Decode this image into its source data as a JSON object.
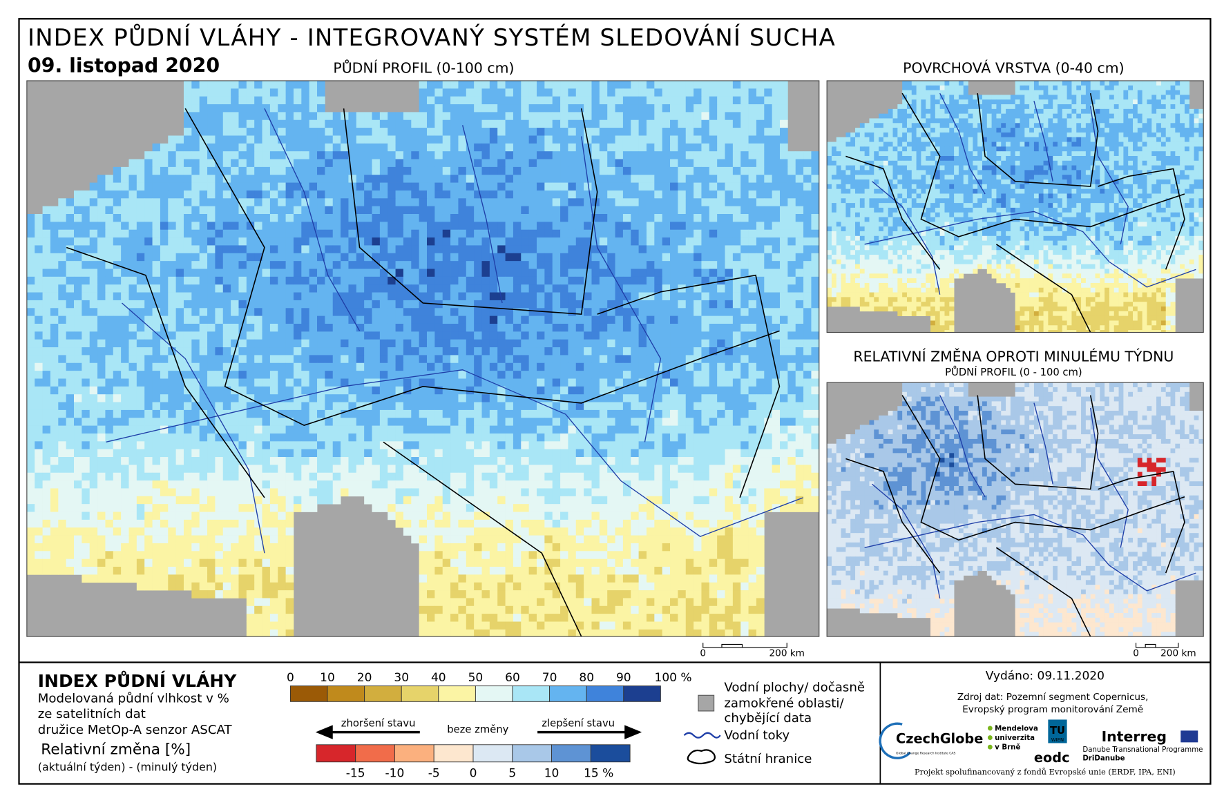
{
  "header": {
    "title": "INDEX PŮDNÍ VLÁHY - INTEGROVANÝ SYSTÉM SLEDOVÁNÍ SUCHA",
    "date": "09. listopad 2020"
  },
  "panels": {
    "main": "PŮDNÍ PROFIL (0-100 cm)",
    "surface": "POVRCHOVÁ VRSTVA (0-40 cm)",
    "change_title": "RELATIVNÍ ZMĚNA OPROTI MINULÉMU TÝDNU",
    "change_subtitle": "PŮDNÍ PROFIL (0 - 100 cm)"
  },
  "scale_bar": {
    "start": "0",
    "end": "200 km"
  },
  "legend": {
    "title": "INDEX PŮDNÍ VLÁHY",
    "lines": [
      "Modelovaná půdní vlhkost v %",
      "ze satelitních dat",
      "družice MetOp-A senzor ASCAT"
    ],
    "change_title": "Relativní změna [%]",
    "change_note": "(aktuální týden) - (minulý týden)",
    "moisture_ticks": [
      "0",
      "10",
      "20",
      "30",
      "40",
      "50",
      "60",
      "70",
      "80",
      "90",
      "100 %"
    ],
    "moisture_colors": [
      "#9b5a06",
      "#c08a1c",
      "#d2ae3e",
      "#e6d36a",
      "#fbf4a4",
      "#e4f7f4",
      "#a9e6f6",
      "#64b4f0",
      "#3f83db",
      "#1c3f90"
    ],
    "worse": "zhoršení stavu",
    "nochange": "beze změny",
    "better": "zlepšení stavu",
    "change_ticks": [
      "-15",
      "-10",
      "-5",
      "0",
      "5",
      "10",
      "15 %"
    ],
    "change_colors": [
      "#d7262b",
      "#f16c4a",
      "#fbb07e",
      "#fde7cf",
      "#dce8f3",
      "#a9c8e8",
      "#5e93d4",
      "#1b4d9c"
    ],
    "water": [
      "Vodní plochy/ dočasně",
      "zamokřené oblasti/",
      "chybějící data"
    ],
    "rivers": "Vodní toky",
    "borders": "Státní hranice"
  },
  "footer": {
    "issued": "Vydáno: 09.11.2020",
    "source": [
      "Zdroj dat: Pozemní segment Copernicus,",
      "Evropský program monitorování Země"
    ],
    "logos": {
      "czechglobe": "CzechGlobe",
      "czechglobe_sub": "Global Change Research Institute CAS",
      "mendel": [
        "Mendelova",
        "univerzita",
        "v Brně"
      ],
      "tu": [
        "TU",
        "WIEN"
      ],
      "eodc": "eodc",
      "interreg": "Interreg",
      "danube": "Danube Transnational Programme",
      "dridanube": "DriDanube"
    },
    "funding": "Projekt spolufinancovaný z fondů Evropské unie (ERDF, IPA, ENI)"
  }
}
